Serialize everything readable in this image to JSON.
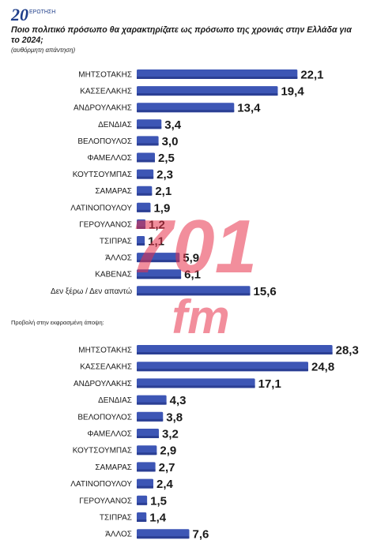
{
  "header": {
    "question_number": "20",
    "question_tag": "ΕΡΩΤΗΣΗ",
    "question_text": "Ποιο πολιτικό πρόσωπο θα χαρακτηρίζατε ως πρόσωπο της χρονιάς στην Ελλάδα για το 2024;",
    "note": "(αυθόρμητη απάντηση)"
  },
  "watermark": {
    "text": "701",
    "subtext": "fm"
  },
  "colors": {
    "bar": "#3d56b5",
    "bar_dark": "#2b3f94",
    "watermark": "#e8314a"
  },
  "chart_data": [
    {
      "type": "bar",
      "orientation": "horizontal",
      "title": "",
      "categories": [
        "ΜΗΤΣΟΤΑΚΗΣ",
        "ΚΑΣΣΕΛΑΚΗΣ",
        "ΑΝΔΡΟΥΛΑΚΗΣ",
        "ΔΕΝΔΙΑΣ",
        "ΒΕΛΟΠΟΥΛΟΣ",
        "ΦΑΜΕΛΛΟΣ",
        "ΚΟΥΤΣΟΥΜΠΑΣ",
        "ΣΑΜΑΡΑΣ",
        "ΛΑΤΙΝΟΠΟΥΛΟΥ",
        "ΓΕΡΟΥΛΑΝΟΣ",
        "ΤΣΙΠΡΑΣ",
        "ΆΛΛΟΣ",
        "ΚΑΒΕΝΑΣ",
        "Δεν ξέρω / Δεν απαντώ"
      ],
      "values": [
        22.1,
        19.4,
        13.4,
        3.4,
        3.0,
        2.5,
        2.3,
        2.1,
        1.9,
        1.2,
        1.1,
        5.9,
        6.1,
        15.6
      ],
      "labels": [
        "22,1",
        "19,4",
        "13,4",
        "3,4",
        "3,0",
        "2,5",
        "2,3",
        "2,1",
        "1,9",
        "1,2",
        "1,1",
        "5,9",
        "6,1",
        "15,6"
      ],
      "xlim": [
        0,
        30
      ]
    },
    {
      "type": "bar",
      "orientation": "horizontal",
      "title": "Προβολή στην εκφρασμένη άποψη:",
      "categories": [
        "ΜΗΤΣΟΤΑΚΗΣ",
        "ΚΑΣΣΕΛΑΚΗΣ",
        "ΑΝΔΡΟΥΛΑΚΗΣ",
        "ΔΕΝΔΙΑΣ",
        "ΒΕΛΟΠΟΥΛΟΣ",
        "ΦΑΜΕΛΛΟΣ",
        "ΚΟΥΤΣΟΥΜΠΑΣ",
        "ΣΑΜΑΡΑΣ",
        "ΛΑΤΙΝΟΠΟΥΛΟΥ",
        "ΓΕΡΟΥΛΑΝΟΣ",
        "ΤΣΙΠΡΑΣ",
        "ΆΛΛΟΣ"
      ],
      "values": [
        28.3,
        24.8,
        17.1,
        4.3,
        3.8,
        3.2,
        2.9,
        2.7,
        2.4,
        1.5,
        1.4,
        7.6
      ],
      "labels": [
        "28,3",
        "24,8",
        "17,1",
        "4,3",
        "3,8",
        "3,2",
        "2,9",
        "2,7",
        "2,4",
        "1,5",
        "1,4",
        "7,6"
      ],
      "xlim": [
        0,
        30
      ]
    }
  ]
}
